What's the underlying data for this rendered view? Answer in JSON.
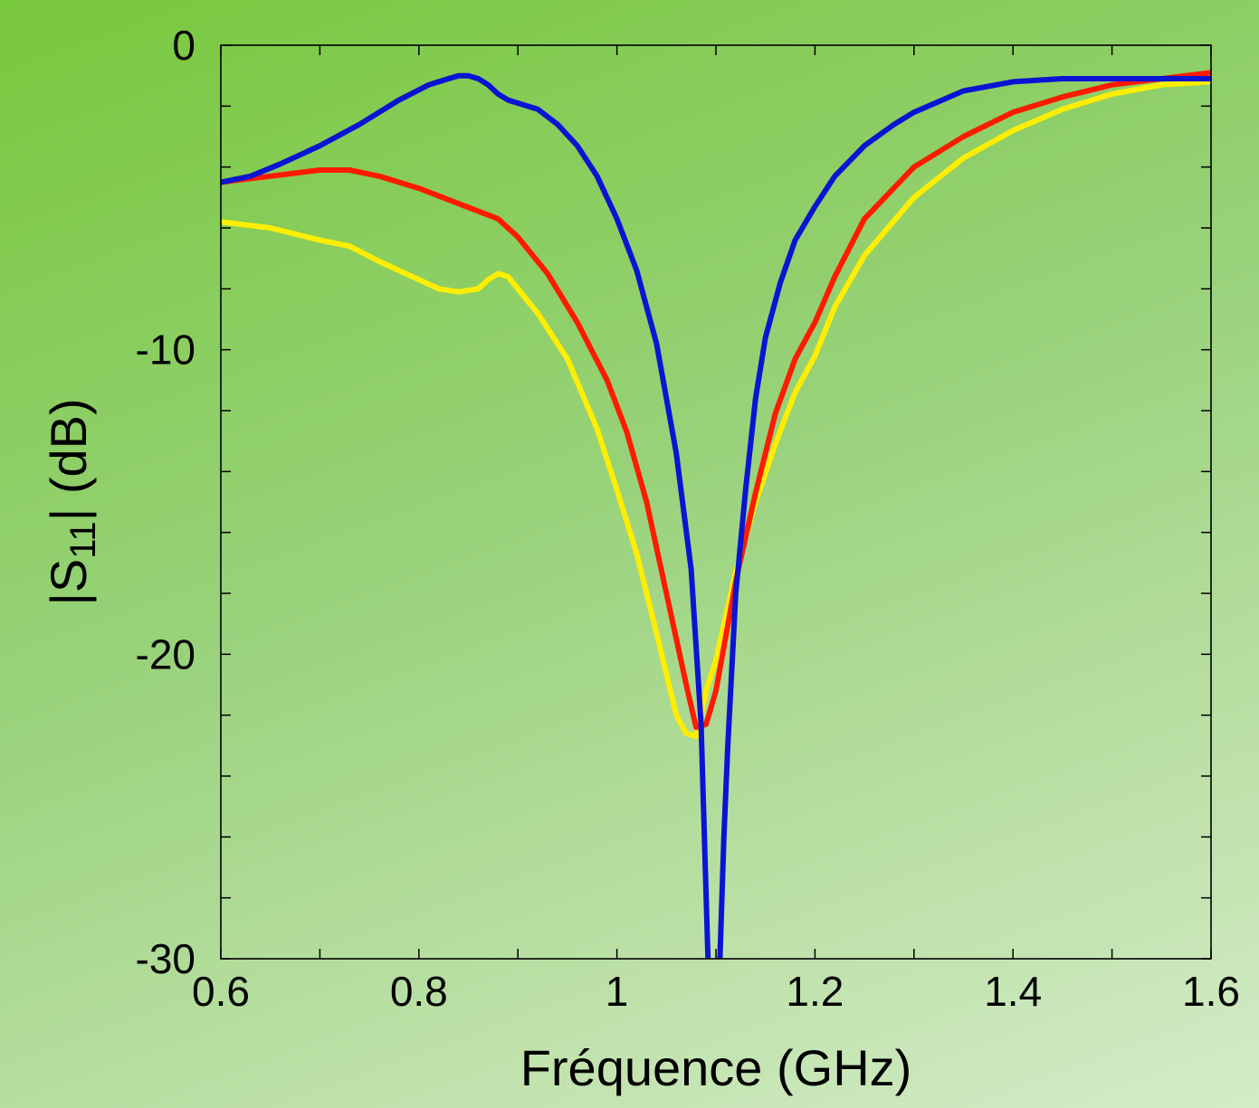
{
  "chart_data": {
    "type": "line",
    "xlabel": "Fréquence (GHz)",
    "ylabel_main": "|S",
    "ylabel_sub": "11",
    "ylabel_tail": "| (dB)",
    "xlim": [
      0.6,
      1.6
    ],
    "ylim": [
      -30,
      0
    ],
    "xticks": [
      0.6,
      0.8,
      1.0,
      1.2,
      1.4,
      1.6
    ],
    "xtick_labels": [
      "0.6",
      "0.8",
      "1",
      "1.2",
      "1.4",
      "1.6"
    ],
    "yticks": [
      0,
      -10,
      -20,
      -30
    ],
    "ytick_labels": [
      "0",
      "-10",
      "-20",
      "-30"
    ],
    "grid": false,
    "series": [
      {
        "color": "#ffee00",
        "x": [
          0.6,
          0.65,
          0.7,
          0.73,
          0.76,
          0.8,
          0.82,
          0.84,
          0.86,
          0.87,
          0.88,
          0.89,
          0.9,
          0.92,
          0.95,
          0.98,
          1.0,
          1.02,
          1.04,
          1.06,
          1.07,
          1.08,
          1.085,
          1.09,
          1.1,
          1.12,
          1.14,
          1.16,
          1.18,
          1.2,
          1.22,
          1.25,
          1.3,
          1.35,
          1.4,
          1.45,
          1.5,
          1.55,
          1.6
        ],
        "y": [
          -5.8,
          -6.0,
          -6.4,
          -6.6,
          -7.1,
          -7.7,
          -8.0,
          -8.1,
          -8.0,
          -7.7,
          -7.5,
          -7.6,
          -8.0,
          -8.8,
          -10.3,
          -12.6,
          -14.6,
          -16.7,
          -19.3,
          -22.0,
          -22.6,
          -22.7,
          -22.0,
          -21.2,
          -20.2,
          -17.3,
          -15.0,
          -13.1,
          -11.4,
          -10.2,
          -8.6,
          -6.9,
          -5.0,
          -3.7,
          -2.8,
          -2.1,
          -1.6,
          -1.3,
          -1.2
        ]
      },
      {
        "color": "#ff1a00",
        "x": [
          0.6,
          0.65,
          0.7,
          0.73,
          0.76,
          0.8,
          0.84,
          0.88,
          0.9,
          0.93,
          0.96,
          0.99,
          1.01,
          1.03,
          1.05,
          1.07,
          1.08,
          1.09,
          1.1,
          1.12,
          1.14,
          1.16,
          1.18,
          1.2,
          1.22,
          1.25,
          1.3,
          1.35,
          1.4,
          1.45,
          1.5,
          1.55,
          1.6
        ],
        "y": [
          -4.5,
          -4.3,
          -4.1,
          -4.1,
          -4.3,
          -4.7,
          -5.2,
          -5.7,
          -6.3,
          -7.5,
          -9.1,
          -11.0,
          -12.7,
          -15.0,
          -18.0,
          -21.0,
          -22.4,
          -22.3,
          -21.2,
          -17.6,
          -14.7,
          -12.1,
          -10.3,
          -9.1,
          -7.6,
          -5.7,
          -4.0,
          -3.0,
          -2.2,
          -1.7,
          -1.3,
          -1.1,
          -0.9
        ]
      },
      {
        "color": "#0a14d2",
        "x": [
          0.6,
          0.63,
          0.66,
          0.7,
          0.74,
          0.78,
          0.81,
          0.83,
          0.84,
          0.85,
          0.86,
          0.87,
          0.88,
          0.89,
          0.9,
          0.92,
          0.94,
          0.96,
          0.98,
          1.0,
          1.02,
          1.04,
          1.06,
          1.075,
          1.085,
          1.092,
          1.097,
          1.1,
          1.104,
          1.108,
          1.112,
          1.12,
          1.13,
          1.14,
          1.15,
          1.165,
          1.18,
          1.2,
          1.22,
          1.25,
          1.28,
          1.3,
          1.35,
          1.4,
          1.45,
          1.5,
          1.55,
          1.6
        ],
        "y": [
          -4.5,
          -4.3,
          -3.9,
          -3.3,
          -2.6,
          -1.8,
          -1.3,
          -1.1,
          -1.0,
          -1.0,
          -1.1,
          -1.3,
          -1.6,
          -1.8,
          -1.9,
          -2.1,
          -2.6,
          -3.3,
          -4.3,
          -5.7,
          -7.4,
          -9.8,
          -13.4,
          -17.2,
          -22.3,
          -30.0,
          -31.0,
          -31.0,
          -30.0,
          -26.0,
          -23.0,
          -18.0,
          -14.6,
          -11.6,
          -9.6,
          -7.8,
          -6.4,
          -5.3,
          -4.3,
          -3.3,
          -2.6,
          -2.2,
          -1.5,
          -1.2,
          -1.1,
          -1.1,
          -1.1,
          -1.1
        ]
      }
    ]
  }
}
